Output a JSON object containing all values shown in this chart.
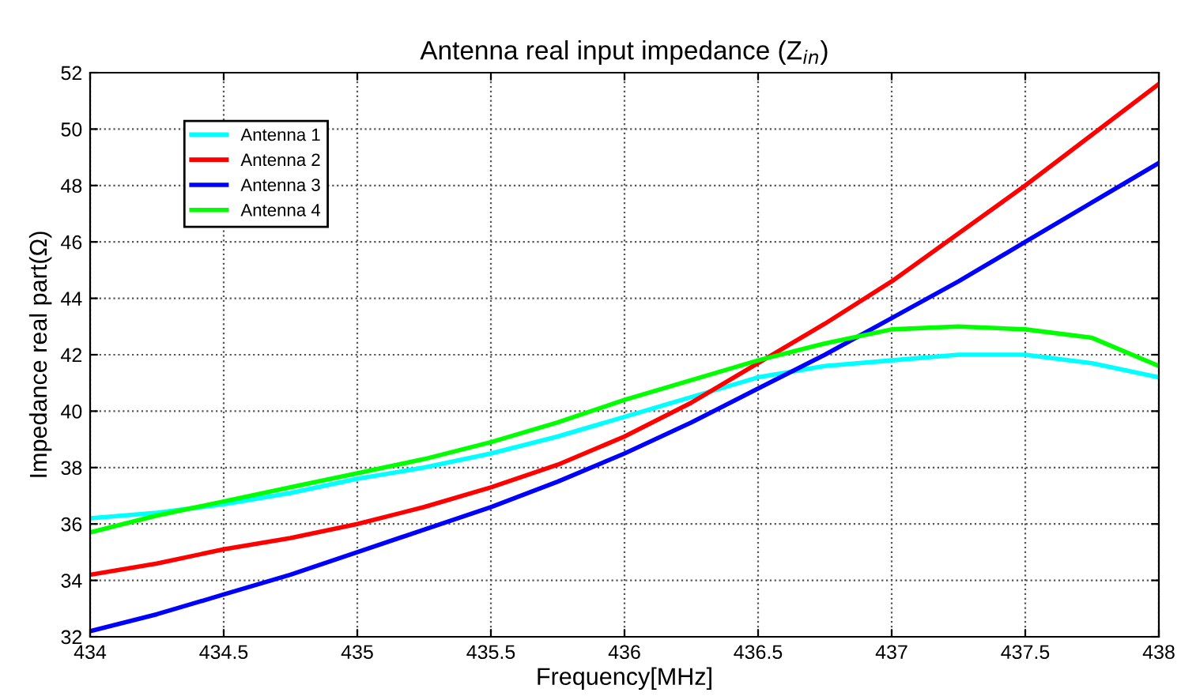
{
  "chart_data": {
    "type": "line",
    "title": "Antenna real input impedance (Z$_{in}$)",
    "xlabel": "Frequency[MHz]",
    "ylabel": "Impedance real part(Ω)",
    "x": [
      434,
      434.25,
      434.5,
      434.75,
      435,
      435.25,
      435.5,
      435.75,
      436,
      436.25,
      436.5,
      436.75,
      437,
      437.25,
      437.5,
      437.75,
      438
    ],
    "series": [
      {
        "name": "Antenna 1",
        "color": "#00ffff",
        "values": [
          36.2,
          36.4,
          36.7,
          37.1,
          37.6,
          38.0,
          38.5,
          39.1,
          39.8,
          40.5,
          41.2,
          41.6,
          41.8,
          42.0,
          42.0,
          41.7,
          41.2
        ]
      },
      {
        "name": "Antenna 2",
        "color": "#ff0000",
        "values": [
          34.2,
          34.6,
          35.1,
          35.5,
          36.0,
          36.6,
          37.3,
          38.1,
          39.1,
          40.3,
          41.7,
          43.1,
          44.6,
          46.3,
          48.0,
          49.8,
          51.6
        ]
      },
      {
        "name": "Antenna 3",
        "color": "#0000ff",
        "values": [
          32.2,
          32.8,
          33.5,
          34.2,
          35.0,
          35.8,
          36.6,
          37.5,
          38.5,
          39.6,
          40.8,
          42.0,
          43.3,
          44.6,
          46.0,
          47.4,
          48.8
        ]
      },
      {
        "name": "Antenna 4",
        "color": "#00ff00",
        "values": [
          35.7,
          36.3,
          36.8,
          37.3,
          37.8,
          38.3,
          38.9,
          39.6,
          40.4,
          41.1,
          41.8,
          42.4,
          42.9,
          43.0,
          42.9,
          42.6,
          41.6
        ]
      }
    ],
    "xlim": [
      434,
      438
    ],
    "xticks": [
      434,
      434.5,
      435,
      435.5,
      436,
      436.5,
      437,
      437.5,
      438
    ],
    "ylim": [
      32,
      52
    ],
    "yticks": [
      32,
      34,
      36,
      38,
      40,
      42,
      44,
      46,
      48,
      50,
      52
    ],
    "grid": true,
    "legend": "top left",
    "marker": "none",
    "line_style": "solid"
  }
}
